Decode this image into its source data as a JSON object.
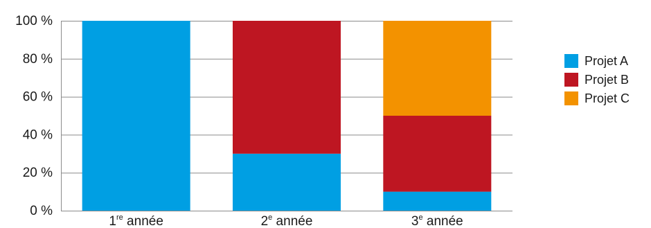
{
  "chart_data": {
    "type": "bar",
    "stacked": true,
    "title": "",
    "xlabel": "",
    "ylabel": "",
    "ylim": [
      0,
      100
    ],
    "yticks": [
      0,
      20,
      40,
      60,
      80,
      100
    ],
    "tick_format": "{v} %",
    "categories": [
      {
        "main": "1",
        "sup": "re",
        "rest": " année"
      },
      {
        "main": "2",
        "sup": "e",
        "rest": " année"
      },
      {
        "main": "3",
        "sup": "e",
        "rest": " année"
      }
    ],
    "series": [
      {
        "name": "Projet A",
        "color": "#009fe3",
        "values": [
          100,
          30,
          10
        ]
      },
      {
        "name": "Projet B",
        "color": "#be1622",
        "values": [
          0,
          70,
          40
        ]
      },
      {
        "name": "Projet C",
        "color": "#f39200",
        "values": [
          0,
          0,
          50
        ]
      }
    ],
    "grid": true,
    "legend": "right"
  }
}
